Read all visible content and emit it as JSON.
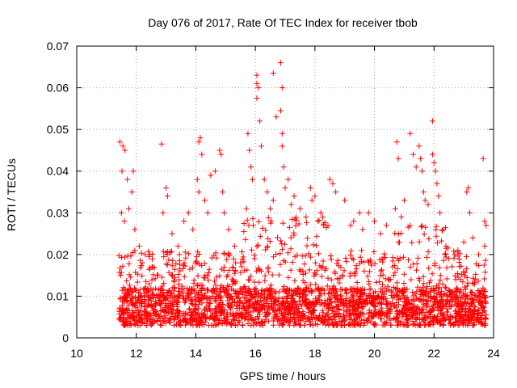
{
  "chart_data": {
    "type": "scatter",
    "title": "Day 076 of 2017, Rate Of TEC Index for receiver tbob",
    "xlabel": "GPS time / hours",
    "ylabel": "ROTI / TECUs",
    "xlim": [
      10,
      24
    ],
    "ylim": [
      0,
      0.07
    ],
    "x_ticks": [
      10,
      12,
      14,
      16,
      18,
      20,
      22,
      24
    ],
    "x_tick_labels": [
      "10",
      "12",
      "14",
      "16",
      "18",
      "20",
      "22",
      "24"
    ],
    "y_ticks": [
      0,
      0.01,
      0.02,
      0.03,
      0.04,
      0.05,
      0.06,
      0.07
    ],
    "y_tick_labels": [
      "0",
      "0.01",
      "0.02",
      "0.03",
      "0.04",
      "0.05",
      "0.06",
      "0.07"
    ],
    "grid": true,
    "marker": "+",
    "color": "#ff0000",
    "series": [
      {
        "name": "ROTI",
        "points": [
          [
            11.45,
            0.047
          ],
          [
            11.55,
            0.046
          ],
          [
            11.62,
            0.045
          ],
          [
            11.52,
            0.04
          ],
          [
            11.7,
            0.038
          ],
          [
            11.9,
            0.04
          ],
          [
            11.85,
            0.035
          ],
          [
            11.5,
            0.03
          ],
          [
            11.6,
            0.028
          ],
          [
            11.75,
            0.031
          ],
          [
            11.95,
            0.026
          ],
          [
            12.1,
            0.022
          ],
          [
            12.2,
            0.018
          ],
          [
            12.45,
            0.02
          ],
          [
            12.55,
            0.017
          ],
          [
            12.85,
            0.0465
          ],
          [
            12.9,
            0.03
          ],
          [
            13.0,
            0.036
          ],
          [
            13.05,
            0.034
          ],
          [
            13.2,
            0.025
          ],
          [
            13.4,
            0.022
          ],
          [
            13.6,
            0.028
          ],
          [
            13.75,
            0.03
          ],
          [
            13.9,
            0.026
          ],
          [
            14.1,
            0.047
          ],
          [
            14.15,
            0.048
          ],
          [
            14.2,
            0.044
          ],
          [
            14.1,
            0.035
          ],
          [
            14.05,
            0.038
          ],
          [
            14.3,
            0.033
          ],
          [
            14.4,
            0.03
          ],
          [
            14.5,
            0.039
          ],
          [
            14.65,
            0.04
          ],
          [
            14.8,
            0.045
          ],
          [
            14.85,
            0.044
          ],
          [
            14.9,
            0.035
          ],
          [
            14.95,
            0.03
          ],
          [
            15.1,
            0.026
          ],
          [
            15.3,
            0.022
          ],
          [
            15.5,
            0.018
          ],
          [
            15.7,
            0.031
          ],
          [
            15.75,
            0.049
          ],
          [
            15.8,
            0.045
          ],
          [
            15.85,
            0.041
          ],
          [
            15.9,
            0.038
          ],
          [
            16.05,
            0.063
          ],
          [
            16.05,
            0.061
          ],
          [
            16.1,
            0.06
          ],
          [
            16.05,
            0.0575
          ],
          [
            16.15,
            0.052
          ],
          [
            16.2,
            0.046
          ],
          [
            16.3,
            0.038
          ],
          [
            16.4,
            0.035
          ],
          [
            16.5,
            0.031
          ],
          [
            16.6,
            0.033
          ],
          [
            16.6,
            0.0635
          ],
          [
            16.7,
            0.053
          ],
          [
            16.85,
            0.066
          ],
          [
            16.9,
            0.06
          ],
          [
            16.85,
            0.0545
          ],
          [
            16.9,
            0.049
          ],
          [
            16.9,
            0.046
          ],
          [
            16.95,
            0.041
          ],
          [
            17.0,
            0.036
          ],
          [
            17.1,
            0.038
          ],
          [
            17.2,
            0.032
          ],
          [
            17.3,
            0.034
          ],
          [
            17.5,
            0.031
          ],
          [
            17.7,
            0.029
          ],
          [
            17.9,
            0.033
          ],
          [
            18.1,
            0.028
          ],
          [
            17.85,
            0.036
          ],
          [
            18.0,
            0.034
          ],
          [
            18.2,
            0.03
          ],
          [
            18.5,
            0.038
          ],
          [
            18.6,
            0.037
          ],
          [
            18.7,
            0.035
          ],
          [
            19.0,
            0.033
          ],
          [
            19.2,
            0.027
          ],
          [
            19.3,
            0.028
          ],
          [
            19.5,
            0.03
          ],
          [
            19.6,
            0.026
          ],
          [
            19.8,
            0.03
          ],
          [
            20.0,
            0.028
          ],
          [
            20.2,
            0.025
          ],
          [
            20.4,
            0.027
          ],
          [
            20.75,
            0.047
          ],
          [
            20.8,
            0.043
          ],
          [
            20.7,
            0.031
          ],
          [
            20.9,
            0.029
          ],
          [
            21.0,
            0.033
          ],
          [
            21.2,
            0.049
          ],
          [
            21.3,
            0.044
          ],
          [
            21.4,
            0.041
          ],
          [
            21.5,
            0.046
          ],
          [
            21.55,
            0.043
          ],
          [
            21.6,
            0.04
          ],
          [
            21.65,
            0.035
          ],
          [
            21.7,
            0.033
          ],
          [
            21.8,
            0.032
          ],
          [
            21.95,
            0.052
          ],
          [
            21.95,
            0.044
          ],
          [
            22.0,
            0.042
          ],
          [
            22.05,
            0.04
          ],
          [
            22.1,
            0.037
          ],
          [
            22.15,
            0.034
          ],
          [
            22.2,
            0.03
          ],
          [
            22.3,
            0.026
          ],
          [
            22.4,
            0.022
          ],
          [
            22.5,
            0.019
          ],
          [
            22.8,
            0.021
          ],
          [
            23.0,
            0.023
          ],
          [
            23.1,
            0.035
          ],
          [
            23.15,
            0.036
          ],
          [
            23.2,
            0.03
          ],
          [
            23.3,
            0.024
          ],
          [
            23.5,
            0.02
          ],
          [
            23.65,
            0.043
          ],
          [
            23.7,
            0.028
          ],
          [
            23.75,
            0.027
          ],
          [
            23.7,
            0.022
          ]
        ]
      }
    ]
  }
}
